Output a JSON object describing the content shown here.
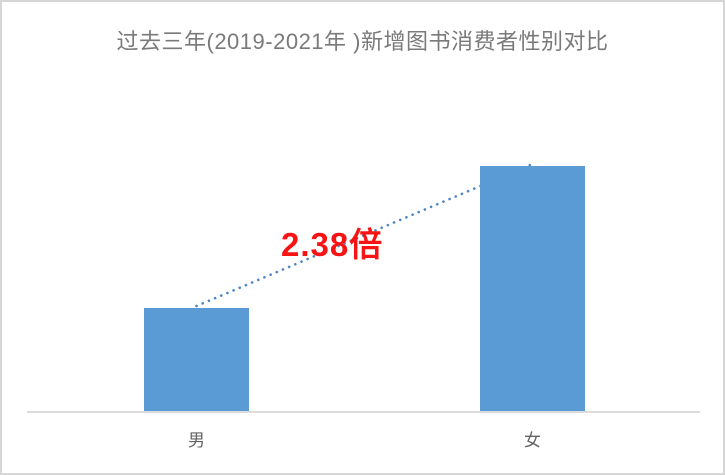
{
  "page": {
    "background": "#ffffff",
    "border_color": "#d6d6d6",
    "title_color": "#7a7a7a",
    "axis_line_color": "#dcdcdc",
    "tick_label_color": "#636363"
  },
  "chart_data": {
    "type": "bar",
    "title": "过去三年(2019-2021年 )新增图书消费者性别对比",
    "categories": [
      "男",
      "女"
    ],
    "values": [
      1,
      2.38
    ],
    "series": [
      {
        "name": "新增图书消费者",
        "values": [
          1,
          2.38
        ]
      }
    ],
    "annotation": "2.38倍",
    "annotation_meaning": "女 is 2.38 times 男",
    "bar_color": "#5b9bd5",
    "line_color": "#4e86c0",
    "annotation_color": "#f81414",
    "xlabel": "",
    "ylabel": "",
    "ylim": [
      0,
      2.8
    ],
    "grid": false,
    "legend": false,
    "connector": {
      "from_category": "男",
      "to_category": "女",
      "style": "dotted"
    }
  }
}
